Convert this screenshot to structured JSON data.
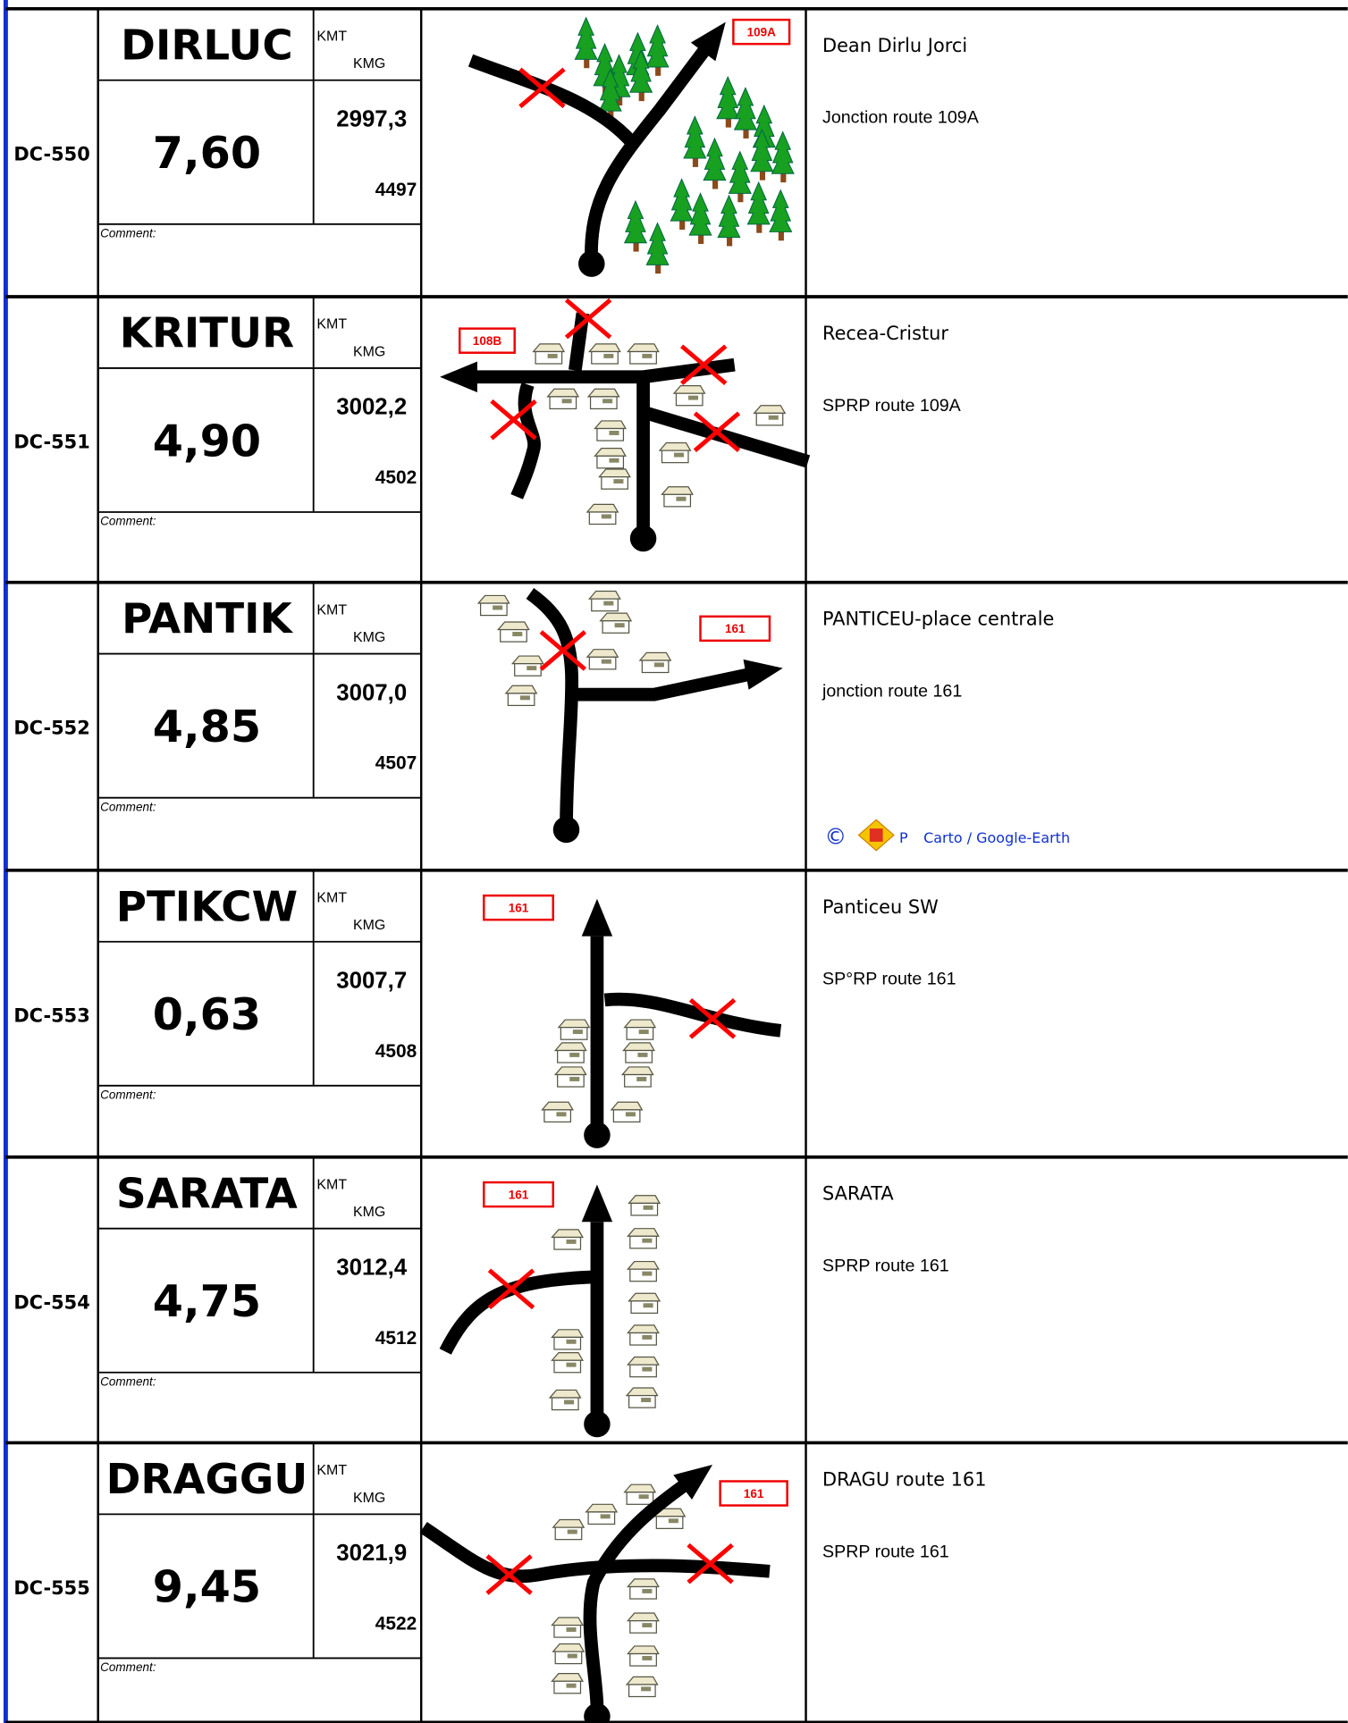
{
  "labels": {
    "kmt": "KMT",
    "kmg": "KMG",
    "comment": "Comment:"
  },
  "rows": [
    {
      "id": "DC-550",
      "name": "DIRLUC",
      "distance": "7,60",
      "kmt": "2997,3",
      "kmg": "4497",
      "route_label": "109A",
      "description": [
        "Dean Dirlu Jorci",
        "Jonction route 109A"
      ]
    },
    {
      "id": "DC-551",
      "name": "KRITUR",
      "distance": "4,90",
      "kmt": "3002,2",
      "kmg": "4502",
      "route_label": "108B",
      "description": [
        "Recea-Cristur",
        "SPRP route 109A"
      ]
    },
    {
      "id": "DC-552",
      "name": "PANTIK",
      "distance": "4,85",
      "kmt": "3007,0",
      "kmg": "4507",
      "route_label": "161",
      "description": [
        "PANTICEU-place centrale",
        "jonction route 161"
      ]
    },
    {
      "id": "DC-553",
      "name": "PTIKCW",
      "distance": "0,63",
      "kmt": "3007,7",
      "kmg": "4508",
      "route_label": "161",
      "description": [
        "Panticeu SW",
        "SP°RP route 161"
      ]
    },
    {
      "id": "DC-554",
      "name": "SARATA",
      "distance": "4,75",
      "kmt": "3012,4",
      "kmg": "4512",
      "route_label": "161",
      "description": [
        "SARATA",
        "SPRP route 161"
      ]
    },
    {
      "id": "DC-555",
      "name": "DRAGGU",
      "distance": "9,45",
      "kmt": "3021,9",
      "kmg": "4522",
      "route_label": "161",
      "description": [
        "DRAGU route 161",
        "SPRP route 161"
      ]
    }
  ],
  "credit": {
    "symbol": "©",
    "logo_text": "P",
    "text": "Carto / Google-Earth"
  }
}
